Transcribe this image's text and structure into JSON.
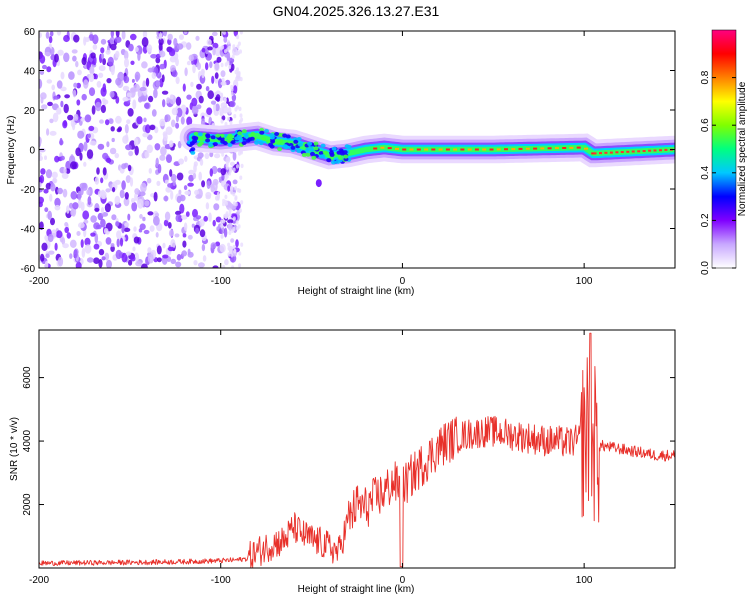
{
  "title": "GN04.2025.326.13.27.E31",
  "colors": {
    "line": "#e8302a",
    "text": "#000000",
    "frame": "#000000"
  },
  "chart_data": [
    {
      "type": "heatmap",
      "title": "GN04.2025.326.13.27.E31",
      "xlabel": "Height of straight line (km)",
      "ylabel": "Frequency (Hz)",
      "xlim": [
        -200,
        150
      ],
      "ylim": [
        -60,
        60
      ],
      "xticks": [
        -200,
        -100,
        0,
        100
      ],
      "xtick_labels": [
        "-200",
        "-100",
        "0",
        "100"
      ],
      "yticks": [
        -60,
        -40,
        -20,
        0,
        20,
        40,
        60
      ],
      "ytick_labels": [
        "-60",
        "-40",
        "-20",
        "0",
        "20",
        "40",
        "60"
      ],
      "noise_region_x": [
        -200,
        -90
      ],
      "signal_band": [
        [
          -115,
          6
        ],
        [
          -100,
          5
        ],
        [
          -90,
          6
        ],
        [
          -80,
          7
        ],
        [
          -70,
          4
        ],
        [
          -60,
          3
        ],
        [
          -50,
          0
        ],
        [
          -40,
          -3
        ],
        [
          -30,
          -2
        ],
        [
          -20,
          0
        ],
        [
          -10,
          1
        ],
        [
          0,
          0
        ],
        [
          50,
          0
        ],
        [
          100,
          1
        ],
        [
          105,
          -2
        ],
        [
          150,
          0
        ]
      ],
      "colorbar": {
        "label": "Normalized spectral amplitude",
        "range": [
          0,
          1
        ],
        "ticks": [
          0,
          0.2,
          0.4,
          0.6,
          0.8
        ],
        "tick_labels": [
          "0.0",
          "0.2",
          "0.4",
          "0.6",
          "0.8"
        ],
        "stops": [
          "#ffffff",
          "#c8a8ff",
          "#8000ff",
          "#0000ff",
          "#00c8ff",
          "#00ff80",
          "#80ff00",
          "#ffff00",
          "#ff8000",
          "#ff0000",
          "#ff0080"
        ]
      }
    },
    {
      "type": "line",
      "xlabel": "Height of straight line (km)",
      "ylabel": "SNR (10 * v/v)",
      "xlim": [
        -200,
        150
      ],
      "ylim": [
        0,
        7500
      ],
      "xticks": [
        -200,
        -100,
        0,
        100
      ],
      "xtick_labels": [
        "-200",
        "-100",
        "0",
        "100"
      ],
      "yticks": [
        2000,
        4000,
        6000
      ],
      "ytick_labels": [
        "2000",
        "4000",
        "6000"
      ],
      "series": [
        {
          "name": "SNR",
          "points": [
            [
              -200,
              150
            ],
            [
              -180,
              160
            ],
            [
              -160,
              170
            ],
            [
              -140,
              180
            ],
            [
              -120,
              200
            ],
            [
              -100,
              230
            ],
            [
              -90,
              260
            ],
            [
              -85,
              300
            ],
            [
              -80,
              500
            ],
            [
              -75,
              650
            ],
            [
              -70,
              800
            ],
            [
              -65,
              850
            ],
            [
              -60,
              1300
            ],
            [
              -55,
              1050
            ],
            [
              -50,
              900
            ],
            [
              -45,
              800
            ],
            [
              -40,
              650
            ],
            [
              -35,
              500
            ],
            [
              -30,
              1500
            ],
            [
              -25,
              2000
            ],
            [
              -20,
              1900
            ],
            [
              -15,
              2200
            ],
            [
              -10,
              2400
            ],
            [
              -5,
              2700
            ],
            [
              0,
              2500
            ],
            [
              5,
              2900
            ],
            [
              10,
              3200
            ],
            [
              15,
              3500
            ],
            [
              20,
              3800
            ],
            [
              25,
              4000
            ],
            [
              30,
              4100
            ],
            [
              35,
              4200
            ],
            [
              40,
              4250
            ],
            [
              45,
              4300
            ],
            [
              50,
              4300
            ],
            [
              55,
              4250
            ],
            [
              60,
              4200
            ],
            [
              65,
              4150
            ],
            [
              70,
              4100
            ],
            [
              75,
              4050
            ],
            [
              80,
              4000
            ],
            [
              85,
              4000
            ],
            [
              90,
              3950
            ],
            [
              95,
              4000
            ],
            [
              100,
              4100
            ],
            [
              103,
              4500
            ],
            [
              105,
              4000
            ],
            [
              107,
              3800
            ],
            [
              110,
              3850
            ],
            [
              115,
              3800
            ],
            [
              120,
              3750
            ],
            [
              125,
              3700
            ],
            [
              130,
              3650
            ],
            [
              135,
              3600
            ],
            [
              140,
              3550
            ],
            [
              145,
              3550
            ],
            [
              150,
              3550
            ]
          ]
        }
      ]
    }
  ]
}
